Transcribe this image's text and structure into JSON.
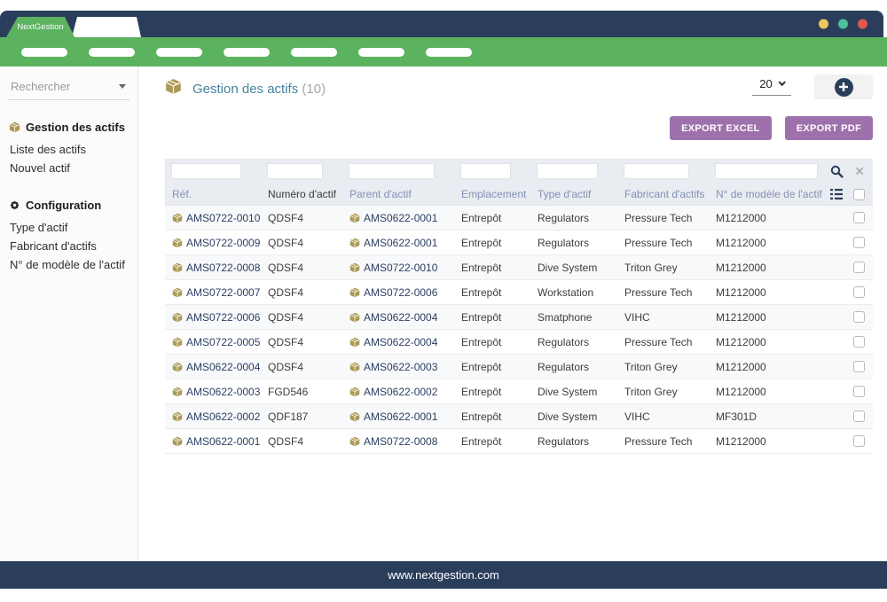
{
  "window": {
    "tab_title": "NextGestion",
    "traffic_lights": [
      {
        "name": "minimize",
        "color": "#efc75e"
      },
      {
        "name": "maximize",
        "color": "#50bf9b"
      },
      {
        "name": "close",
        "color": "#e2574c"
      }
    ]
  },
  "navbar": {
    "placeholder_count": 7
  },
  "sidebar": {
    "search_placeholder": "Rechercher",
    "sections": [
      {
        "icon": "box-icon",
        "title": "Gestion des actifs",
        "items": [
          "Liste des actifs",
          "Nouvel actif"
        ]
      },
      {
        "icon": "gear-icon",
        "title": "Configuration",
        "items": [
          "Type d'actif",
          "Fabricant d'actifs",
          "N° de modèle de l'actif"
        ]
      }
    ]
  },
  "main": {
    "title": "Gestion des actifs",
    "count": "(10)",
    "page_size": "20",
    "export_excel_label": "EXPORT EXCEL",
    "export_pdf_label": "EXPORT PDF"
  },
  "table": {
    "columns": [
      "Réf.",
      "Numéro d'actif",
      "Parent d'actif",
      "Emplacement",
      "Type d'actif",
      "Fabricant d'actifs",
      "N° de modèle de l'actif"
    ],
    "sort_column": "Numéro d'actif",
    "rows": [
      {
        "ref": "AMS0722-0010",
        "numero": "QDSF4",
        "parent": "AMS0622-0001",
        "emplacement": "Entrepôt",
        "type": "Regulators",
        "fabricant": "Pressure Tech",
        "modele": "M1212000"
      },
      {
        "ref": "AMS0722-0009",
        "numero": "QDSF4",
        "parent": "AMS0622-0001",
        "emplacement": "Entrepôt",
        "type": "Regulators",
        "fabricant": "Pressure Tech",
        "modele": "M1212000"
      },
      {
        "ref": "AMS0722-0008",
        "numero": "QDSF4",
        "parent": "AMS0722-0010",
        "emplacement": "Entrepôt",
        "type": "Dive System",
        "fabricant": "Triton Grey",
        "modele": "M1212000"
      },
      {
        "ref": "AMS0722-0007",
        "numero": "QDSF4",
        "parent": "AMS0722-0006",
        "emplacement": "Entrepôt",
        "type": "Workstation",
        "fabricant": "Pressure Tech",
        "modele": "M1212000"
      },
      {
        "ref": "AMS0722-0006",
        "numero": "QDSF4",
        "parent": "AMS0622-0004",
        "emplacement": "Entrepôt",
        "type": "Smatphone",
        "fabricant": "VIHC",
        "modele": "M1212000"
      },
      {
        "ref": "AMS0722-0005",
        "numero": "QDSF4",
        "parent": "AMS0622-0004",
        "emplacement": "Entrepôt",
        "type": "Regulators",
        "fabricant": "Pressure Tech",
        "modele": "M1212000"
      },
      {
        "ref": "AMS0622-0004",
        "numero": "QDSF4",
        "parent": "AMS0622-0003",
        "emplacement": "Entrepôt",
        "type": "Regulators",
        "fabricant": "Triton Grey",
        "modele": "M1212000"
      },
      {
        "ref": "AMS0622-0003",
        "numero": "FGD546",
        "parent": "AMS0622-0002",
        "emplacement": "Entrepôt",
        "type": "Dive System",
        "fabricant": "Triton Grey",
        "modele": "M1212000"
      },
      {
        "ref": "AMS0622-0002",
        "numero": "QDF187",
        "parent": "AMS0622-0001",
        "emplacement": "Entrepôt",
        "type": "Dive System",
        "fabricant": "VIHC",
        "modele": "MF301D"
      },
      {
        "ref": "AMS0622-0001",
        "numero": "QDSF4",
        "parent": "AMS0722-0008",
        "emplacement": "Entrepôt",
        "type": "Regulators",
        "fabricant": "Pressure Tech",
        "modele": "M1212000"
      }
    ]
  },
  "footer": {
    "url": "www.nextgestion.com"
  },
  "colors": {
    "navy": "#2a3e5c",
    "green": "#5bb25f",
    "gold": "#ab9a55",
    "teal_title": "#44839f",
    "purple": "#9e71ad",
    "link": "#2c3f63"
  }
}
